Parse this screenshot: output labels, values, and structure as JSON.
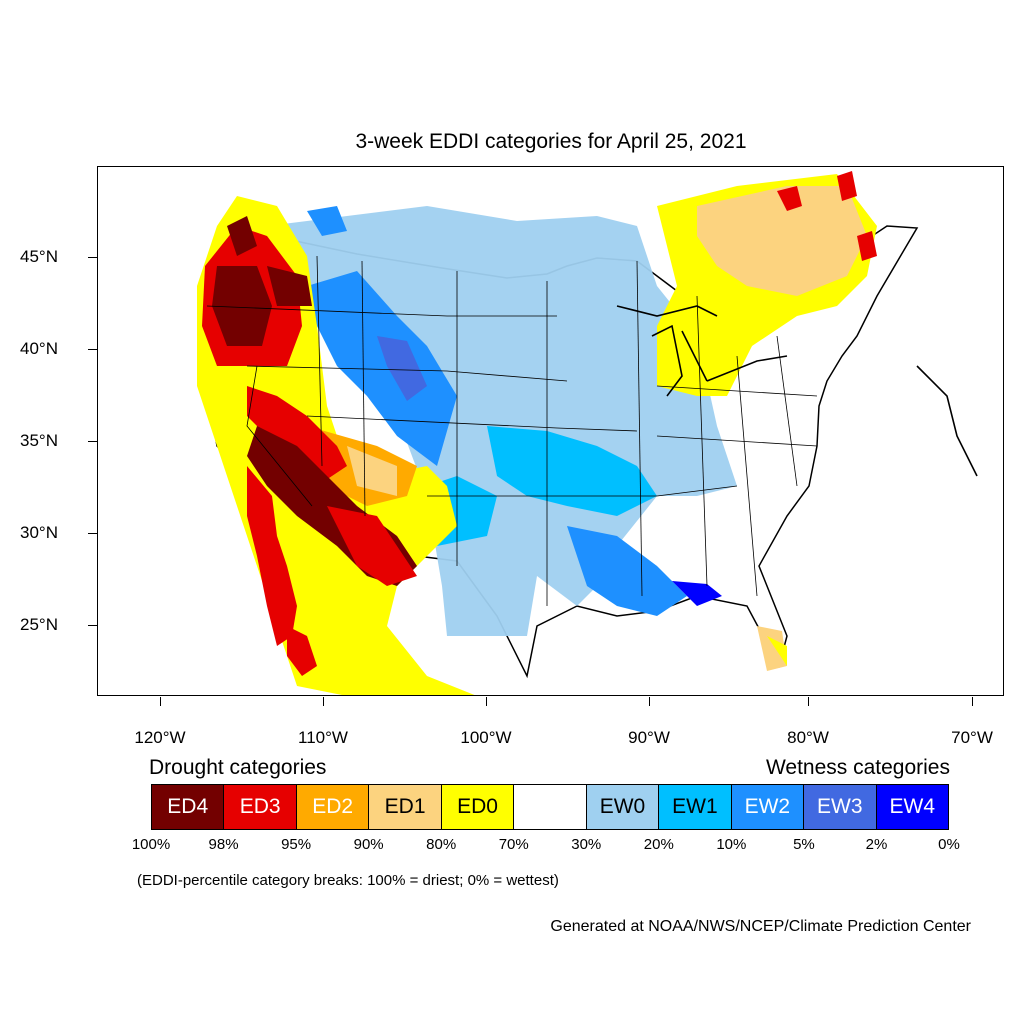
{
  "title": "3-week EDDI categories for April 25, 2021",
  "lat_labels": [
    "45°N",
    "40°N",
    "35°N",
    "30°N",
    "25°N"
  ],
  "lon_labels": [
    "120°W",
    "110°W",
    "100°W",
    "90°W",
    "80°W",
    "70°W"
  ],
  "legend": {
    "drought_heading": "Drought categories",
    "wetness_heading": "Wetness categories",
    "categories": [
      {
        "label": "ED4",
        "color": "#730000",
        "text_color": "#ffffff"
      },
      {
        "label": "ED3",
        "color": "#e60000",
        "text_color": "#ffffff"
      },
      {
        "label": "ED2",
        "color": "#ffaa00",
        "text_color": "#ffffff"
      },
      {
        "label": "ED1",
        "color": "#fcd37f",
        "text_color": "#000000"
      },
      {
        "label": "ED0",
        "color": "#ffff00",
        "text_color": "#000000"
      },
      {
        "label": "",
        "color": "#ffffff",
        "text_color": "#000000"
      },
      {
        "label": "EW0",
        "color": "#9fd0f0",
        "text_color": "#000000"
      },
      {
        "label": "EW1",
        "color": "#00bfff",
        "text_color": "#000000"
      },
      {
        "label": "EW2",
        "color": "#1e90ff",
        "text_color": "#ffffff"
      },
      {
        "label": "EW3",
        "color": "#4169e1",
        "text_color": "#ffffff"
      },
      {
        "label": "EW4",
        "color": "#0000ff",
        "text_color": "#ffffff"
      }
    ],
    "percent_breaks": [
      "100%",
      "98%",
      "95%",
      "90%",
      "80%",
      "70%",
      "30%",
      "20%",
      "10%",
      "5%",
      "2%",
      "0%"
    ]
  },
  "note": "(EDDI-percentile category breaks: 100% = driest; 0% = wettest)",
  "credit": "Generated at NOAA/NWS/NCEP/Climate Prediction Center"
}
